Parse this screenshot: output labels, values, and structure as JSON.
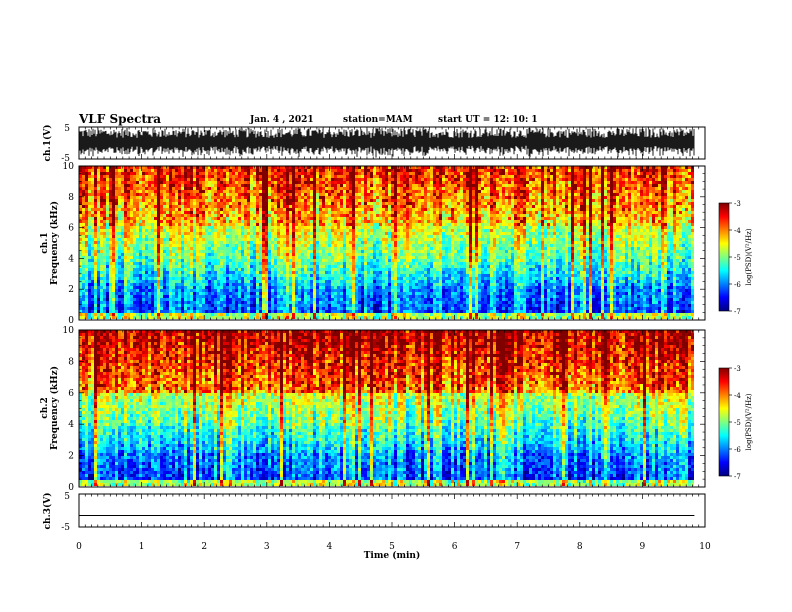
{
  "header": {
    "title": "VLF Spectra",
    "date": "Jan. 4 , 2021",
    "station": "station=MAM",
    "start_ut": "start UT = 12: 10: 1"
  },
  "chart_data": [
    {
      "type": "line",
      "panel": "ch1-waveform",
      "ylabel": "ch.1(V)",
      "ylim": [
        -5,
        5
      ],
      "yticks": [
        "5",
        "-5"
      ],
      "xlim": [
        0,
        10
      ],
      "description_of_signal": "dense impulsive waveform"
    },
    {
      "type": "heatmap",
      "panel": "ch1-spectrogram",
      "ylabel": "ch.1 Frequency (kHz)",
      "ylim": [
        0,
        10
      ],
      "yticks": [
        "0",
        "2",
        "4",
        "6",
        "8",
        "10"
      ],
      "xlim": [
        0,
        10
      ],
      "data_end_min": 9.83,
      "colorbar": {
        "label": "log(PSD)(V²/Hz)",
        "range": [
          -7,
          -3
        ],
        "ticks": [
          "-3",
          "-4",
          "-5",
          "-6",
          "-7"
        ]
      }
    },
    {
      "type": "heatmap",
      "panel": "ch2-spectrogram",
      "ylabel": "ch.2 Frequency (kHz)",
      "ylim": [
        0,
        10
      ],
      "yticks": [
        "0",
        "2",
        "4",
        "6",
        "8",
        "10"
      ],
      "xlim": [
        0,
        10
      ],
      "data_end_min": 9.83,
      "colorbar": {
        "label": "log(PSD)(V²/Hz)",
        "range": [
          -7,
          -3
        ],
        "ticks": [
          "-3",
          "-4",
          "-5",
          "-6",
          "-7"
        ]
      }
    },
    {
      "type": "line",
      "panel": "ch3-waveform",
      "ylabel": "ch.3(V)",
      "ylim": [
        -5,
        5
      ],
      "yticks": [
        "5",
        "-5"
      ],
      "xlim": [
        0,
        10
      ],
      "constant_value": -1.5,
      "xlabel": "Time (min)",
      "xticks": [
        "0",
        "1",
        "2",
        "3",
        "4",
        "5",
        "6",
        "7",
        "8",
        "9",
        "10"
      ]
    }
  ]
}
